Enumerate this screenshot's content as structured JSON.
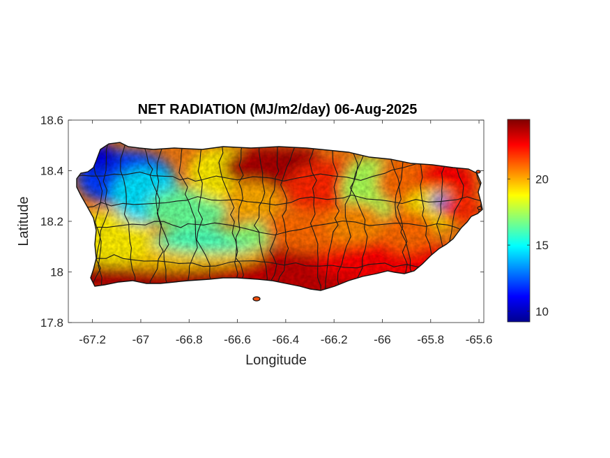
{
  "chart_data": {
    "type": "heatmap",
    "title": "NET RADIATION (MJ/m2/day) 06-Aug-2025",
    "xlabel": "Longitude",
    "ylabel": "Latitude",
    "xlim": [
      -67.3,
      -65.58
    ],
    "ylim": [
      17.8,
      18.6
    ],
    "x_ticks": [
      -67.2,
      -67,
      -66.8,
      -66.6,
      -66.4,
      -66.2,
      -66,
      -65.8,
      -65.6
    ],
    "x_tick_labels": [
      "-67.2",
      "-67",
      "-66.8",
      "-66.6",
      "-66.4",
      "-66.2",
      "-66",
      "-65.8",
      "-65.6"
    ],
    "y_ticks": [
      17.8,
      18,
      18.2,
      18.4,
      18.6
    ],
    "y_tick_labels": [
      "17.8",
      "18",
      "18.2",
      "18.4",
      "18.6"
    ],
    "colorbar": {
      "colormap": "jet",
      "clim": [
        9.2,
        24.5
      ],
      "ticks": [
        10,
        15,
        20
      ],
      "tick_labels": [
        "10",
        "15",
        "20"
      ]
    },
    "regions": [
      {
        "description": "northwest",
        "approx_value": 11
      },
      {
        "description": "west-central",
        "approx_value": 15
      },
      {
        "description": "central ridge",
        "approx_value": 15.5
      },
      {
        "description": "south coast",
        "approx_value": 23
      },
      {
        "description": "north-central coast",
        "approx_value": 23.5
      },
      {
        "description": "east-northeast band",
        "approx_value": 17
      },
      {
        "description": "northeast",
        "approx_value": 22.5
      },
      {
        "description": "east",
        "approx_value": 21.5
      }
    ],
    "legend": "none",
    "grid": false
  }
}
